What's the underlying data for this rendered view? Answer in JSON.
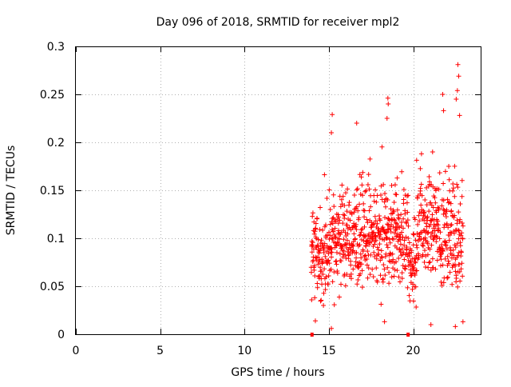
{
  "chart_data": {
    "type": "scatter",
    "title": "Day 096 of 2018, SRMTID for receiver mpl2",
    "xlabel": "GPS time / hours",
    "ylabel": "SRMTID / TECUs",
    "xlim": [
      0,
      24
    ],
    "ylim": [
      0,
      0.3
    ],
    "xticks": [
      0,
      5,
      10,
      15,
      20
    ],
    "yticks": [
      0,
      0.05,
      0.1,
      0.15,
      0.2,
      0.25,
      0.3
    ],
    "xtick_labels": [
      "0",
      "5",
      "10",
      "15",
      "20"
    ],
    "ytick_labels": [
      "0",
      "0.05",
      "0.1",
      "0.15",
      "0.2",
      "0.25",
      "0.3"
    ],
    "grid": true,
    "marker": "+",
    "marker_color": "#ff0000",
    "axis_color": "#000000",
    "grid_color": "#b0b0b0",
    "bottom_markers": [
      14.0,
      19.7
    ],
    "series": [
      {
        "name": "mpl2",
        "x_start": 13.95,
        "x_end": 22.95,
        "count": 900,
        "clusters": [
          {
            "x_range": [
              13.95,
              15.0
            ],
            "typical": 0.085,
            "spread": 0.04
          },
          {
            "x_range": [
              15.0,
              16.5
            ],
            "typical": 0.1,
            "spread": 0.045
          },
          {
            "x_range": [
              16.5,
              18.5
            ],
            "typical": 0.1,
            "spread": 0.045
          },
          {
            "x_range": [
              18.5,
              19.7
            ],
            "typical": 0.1,
            "spread": 0.045
          },
          {
            "x_range": [
              19.7,
              20.2
            ],
            "typical": 0.07,
            "spread": 0.03
          },
          {
            "x_range": [
              20.2,
              21.5
            ],
            "typical": 0.11,
            "spread": 0.045
          },
          {
            "x_range": [
              21.5,
              22.95
            ],
            "typical": 0.105,
            "spread": 0.055
          }
        ],
        "peaks": [
          {
            "x": 15.2,
            "y": 0.229
          },
          {
            "x": 15.15,
            "y": 0.21
          },
          {
            "x": 16.65,
            "y": 0.22
          },
          {
            "x": 18.5,
            "y": 0.246
          },
          {
            "x": 18.52,
            "y": 0.24
          },
          {
            "x": 18.45,
            "y": 0.225
          },
          {
            "x": 21.15,
            "y": 0.19
          },
          {
            "x": 21.75,
            "y": 0.25
          },
          {
            "x": 21.8,
            "y": 0.233
          },
          {
            "x": 22.65,
            "y": 0.281
          },
          {
            "x": 22.7,
            "y": 0.269
          },
          {
            "x": 22.62,
            "y": 0.254
          },
          {
            "x": 22.75,
            "y": 0.228
          },
          {
            "x": 22.55,
            "y": 0.245
          }
        ],
        "lows": [
          {
            "x": 15.15,
            "y": 0.006
          },
          {
            "x": 18.3,
            "y": 0.013
          },
          {
            "x": 21.05,
            "y": 0.01
          },
          {
            "x": 22.5,
            "y": 0.008
          },
          {
            "x": 22.95,
            "y": 0.013
          },
          {
            "x": 14.2,
            "y": 0.014
          }
        ]
      }
    ]
  }
}
